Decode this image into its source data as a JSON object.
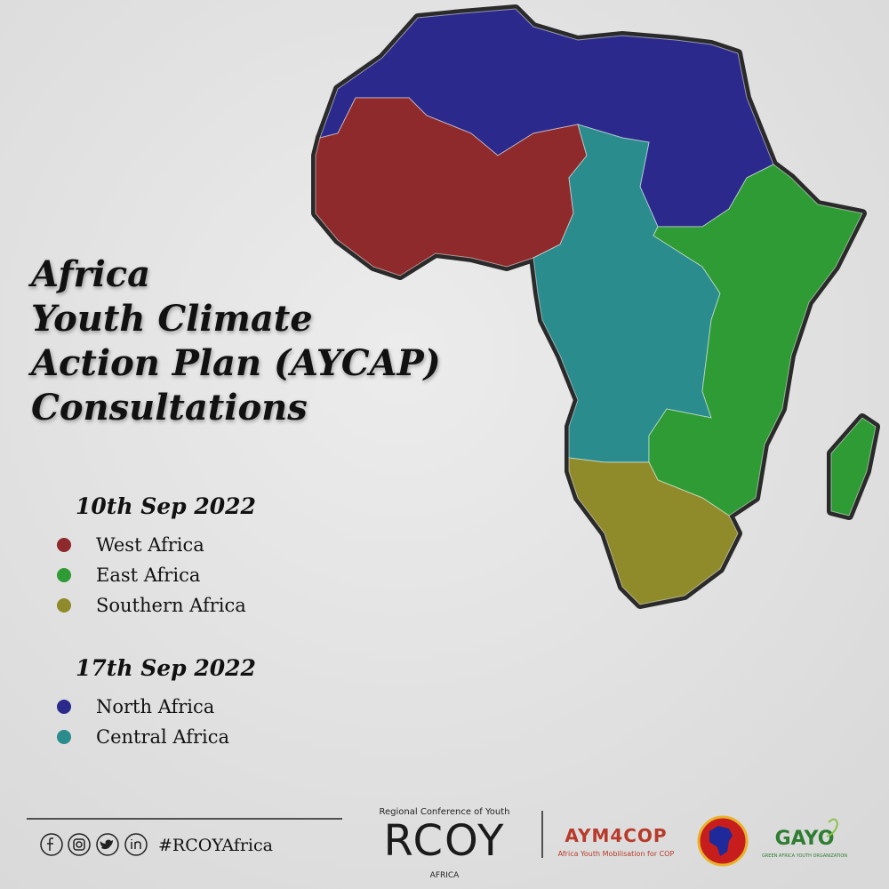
{
  "title": [
    "Africa",
    "Youth Climate",
    "Action Plan (AYCAP)",
    "Consultations"
  ],
  "sessions": [
    {
      "date": "10th Sep 2022",
      "regions": [
        {
          "name": "West Africa",
          "color": "#8e2a2b"
        },
        {
          "name": "East Africa",
          "color": "#2f9b34"
        },
        {
          "name": "Southern Africa",
          "color": "#8f8a2a"
        }
      ]
    },
    {
      "date": "17th Sep 2022",
      "regions": [
        {
          "name": "North Africa",
          "color": "#2b2a8c"
        },
        {
          "name": "Central Africa",
          "color": "#2a8c8c"
        }
      ]
    }
  ],
  "footer": {
    "hashtag": "#RCOYAfrica",
    "logos": {
      "rcoy_top": "Regional Conference of Youth",
      "rcoy": "RCOY",
      "rcoy_bottom": "AFRICA",
      "aym": "AYM4COP",
      "aym_sub": "Africa Youth Mobilisation for COP",
      "gayo": "GAYO",
      "gayo_sub": "GREEN AFRICA YOUTH ORGANIZATION"
    }
  }
}
